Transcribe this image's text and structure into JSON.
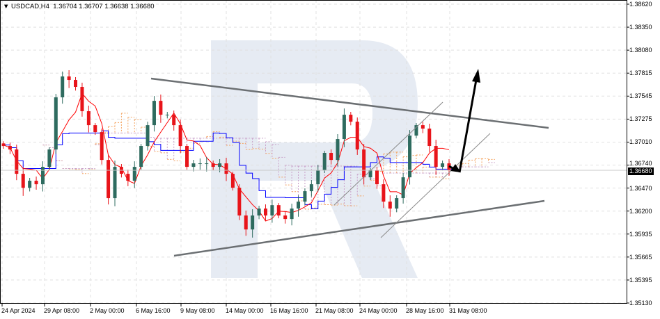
{
  "header": {
    "symbol": "USDCAD,H4",
    "open": "1.36704",
    "high": "1.36707",
    "low": "1.36638",
    "close": "1.36680"
  },
  "current_price_label": "1.36680",
  "colors": {
    "bull": "#2e6b5f",
    "bear": "#e8141a",
    "tenkan": "#ff0000",
    "kijun": "#0000ff",
    "cloud_a": "#f4a460",
    "cloud_b": "#c8a0c8",
    "trendline": "#6b6f72",
    "channel": "#8a8a8a",
    "arrow": "#000000",
    "watermark": "#e6ebf3"
  },
  "chart_data": {
    "type": "candlestick",
    "title": "USDCAD,H4",
    "ylim": [
      1.3513,
      1.3862
    ],
    "y_ticks": [
      "1.38620",
      "1.38350",
      "1.38080",
      "1.37815",
      "1.37545",
      "1.37275",
      "1.37010",
      "1.36740",
      "1.36470",
      "1.36200",
      "1.35935",
      "1.35665",
      "1.35395",
      "1.35130"
    ],
    "x_ticks": [
      "24 Apr 2024",
      "29 Apr 08:00",
      "2 May 00:00",
      "6 May 16:00",
      "9 May 08:00",
      "14 May 00:00",
      "16 May 16:00",
      "21 May 08:00",
      "24 May 00:00",
      "28 May 16:00",
      "31 May 08:00"
    ],
    "grid": true,
    "indicators": [
      "Ichimoku Kinko Hyo"
    ],
    "closes": [
      1.36964,
      1.36923,
      1.36639,
      1.36476,
      1.36558,
      1.36517,
      1.3672,
      1.36923,
      1.37532,
      1.37776,
      1.37735,
      1.37654,
      1.3737,
      1.37207,
      1.37126,
      1.36801,
      1.36355,
      1.3672,
      1.36639,
      1.36558,
      1.3672,
      1.36964,
      1.37207,
      1.37491,
      1.37329,
      1.37329,
      1.37207,
      1.36964,
      1.3672,
      1.36761,
      1.36761,
      1.36761,
      1.3672,
      1.36761,
      1.36639,
      1.36476,
      1.36152,
      1.35989,
      1.36152,
      1.36233,
      1.36152,
      1.36273,
      1.36152,
      1.36111,
      1.36233,
      1.36314,
      1.36436,
      1.36517,
      1.3668,
      1.36883,
      1.36801,
      1.37045,
      1.37329,
      1.37248,
      1.36923,
      1.36598,
      1.3668,
      1.36517,
      1.36314,
      1.36233,
      1.36355,
      1.36598,
      1.37085,
      1.37207,
      1.37167,
      1.36964,
      1.3672,
      1.36761,
      1.3668
    ]
  }
}
